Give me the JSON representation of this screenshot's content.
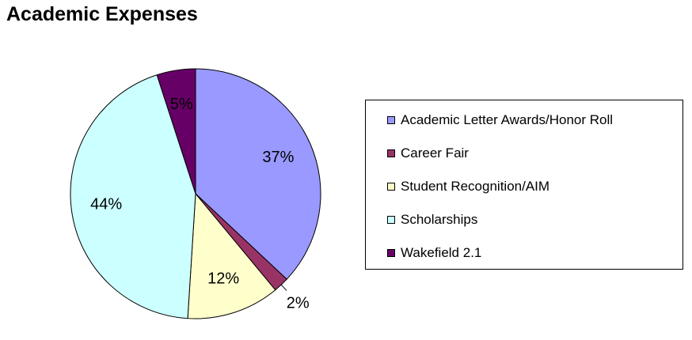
{
  "chart_data": {
    "type": "pie",
    "title": "Academic Expenses",
    "slices": [
      {
        "name": "Academic Letter Awards/Honor Roll",
        "value": 37,
        "label": "37%",
        "color": "#9999ff"
      },
      {
        "name": "Career Fair",
        "value": 2,
        "label": "2%",
        "color": "#993366"
      },
      {
        "name": "Student Recognition/AIM",
        "value": 12,
        "label": "12%",
        "color": "#ffffcc"
      },
      {
        "name": "Scholarships",
        "value": 44,
        "label": "44%",
        "color": "#ccffff"
      },
      {
        "name": "Wakefield 2.1",
        "value": 5,
        "label": "5%",
        "color": "#660066"
      }
    ],
    "legend_position": "right"
  }
}
